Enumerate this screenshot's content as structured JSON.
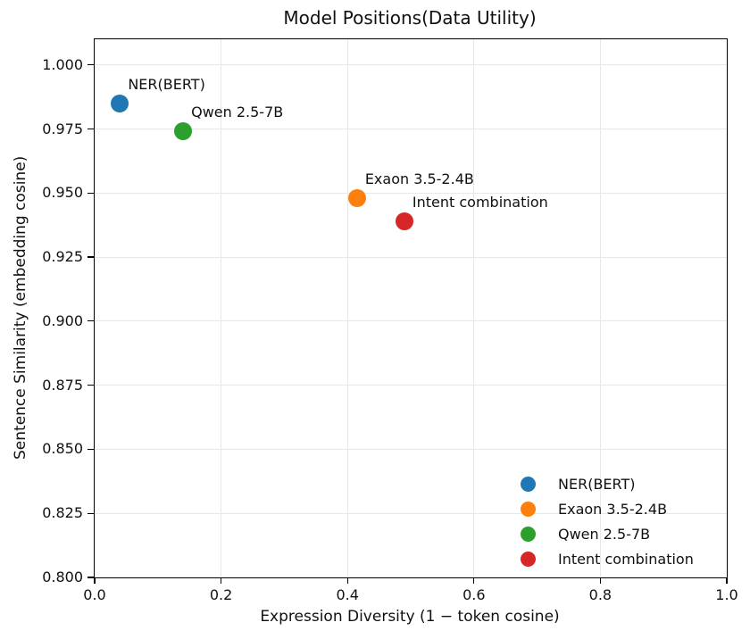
{
  "chart_data": {
    "type": "scatter",
    "title": "Model Positions(Data Utility)",
    "xlabel": "Expression Diversity (1 − token cosine)",
    "ylabel": "Sentence Similarity (embedding cosine)",
    "xlim": [
      0.0,
      1.0
    ],
    "ylim": [
      0.8,
      1.01
    ],
    "x_ticks": [
      0.0,
      0.2,
      0.4,
      0.6,
      0.8,
      1.0
    ],
    "x_tick_labels": [
      "0.0",
      "0.2",
      "0.4",
      "0.6",
      "0.8",
      "1.0"
    ],
    "y_ticks": [
      0.8,
      0.825,
      0.85,
      0.875,
      0.9,
      0.925,
      0.95,
      0.975,
      1.0
    ],
    "y_tick_labels": [
      "0.800",
      "0.825",
      "0.850",
      "0.875",
      "0.900",
      "0.925",
      "0.950",
      "0.975",
      "1.000"
    ],
    "grid": true,
    "grid_color": "#e8e8e8",
    "legend_position": "lower right",
    "legend_frame": false,
    "series": [
      {
        "name": "NER(BERT)",
        "color": "#1f77b4",
        "x": 0.04,
        "y": 0.985,
        "annotation": "NER(BERT)"
      },
      {
        "name": "Exaon 3.5-2.4B",
        "color": "#ff7f0e",
        "x": 0.415,
        "y": 0.948,
        "annotation": "Exaon 3.5-2.4B"
      },
      {
        "name": "Qwen 2.5-7B",
        "color": "#2ca02c",
        "x": 0.14,
        "y": 0.974,
        "annotation": "Qwen 2.5-7B"
      },
      {
        "name": "Intent combination",
        "color": "#d62728",
        "x": 0.49,
        "y": 0.939,
        "annotation": "Intent combination"
      }
    ],
    "legend_entries": [
      "NER(BERT)",
      "Exaon 3.5-2.4B",
      "Qwen 2.5-7B",
      "Intent combination"
    ]
  }
}
